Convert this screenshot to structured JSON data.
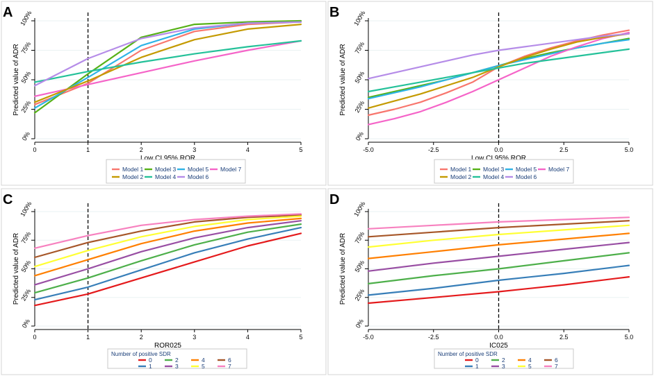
{
  "chart_data": [
    {
      "panel_label": "A",
      "type": "line",
      "title": "",
      "xlabel": "Low CI 95% ROR",
      "ylabel": "Predicted value of ADR",
      "xlim": [
        0,
        5
      ],
      "ylim": [
        0,
        1
      ],
      "xticks": [
        0,
        1,
        2,
        3,
        4,
        5
      ],
      "xtick_labels": [
        "0",
        "1",
        "2",
        "3",
        "4",
        "5"
      ],
      "yticks": [
        0,
        0.25,
        0.5,
        0.75,
        1
      ],
      "ytick_labels": [
        "0%",
        "25%",
        "50%",
        "75%",
        "100%"
      ],
      "vline": 1,
      "grid": true,
      "legend_title": "",
      "legend_cols": 4,
      "series": [
        {
          "name": "Model 1",
          "color": "#f8766d",
          "x": [
            0,
            1,
            2,
            3,
            4,
            5
          ],
          "y": [
            0.29,
            0.47,
            0.75,
            0.91,
            0.97,
            0.99
          ]
        },
        {
          "name": "Model 3",
          "color": "#56b117",
          "x": [
            0,
            1,
            2,
            3,
            4,
            5
          ],
          "y": [
            0.22,
            0.55,
            0.86,
            0.97,
            0.99,
            1.0
          ]
        },
        {
          "name": "Model 5",
          "color": "#2eb3e6",
          "x": [
            0,
            1,
            2,
            3,
            4,
            5
          ],
          "y": [
            0.26,
            0.52,
            0.79,
            0.93,
            0.98,
            0.99
          ]
        },
        {
          "name": "Model 7",
          "color": "#f564c8",
          "x": [
            0,
            1,
            2,
            3,
            4,
            5
          ],
          "y": [
            0.36,
            0.46,
            0.56,
            0.66,
            0.75,
            0.83
          ]
        },
        {
          "name": "Model 2",
          "color": "#c49a00",
          "x": [
            0,
            1,
            2,
            3,
            4,
            5
          ],
          "y": [
            0.31,
            0.49,
            0.69,
            0.84,
            0.93,
            0.97
          ]
        },
        {
          "name": "Model 4",
          "color": "#24c199",
          "x": [
            0,
            1,
            2,
            3,
            4,
            5
          ],
          "y": [
            0.48,
            0.57,
            0.65,
            0.72,
            0.78,
            0.83
          ]
        },
        {
          "name": "Model 6",
          "color": "#b58ce8",
          "x": [
            0,
            1,
            2,
            3,
            4,
            5
          ],
          "y": [
            0.45,
            0.68,
            0.85,
            0.94,
            0.98,
            0.99
          ]
        }
      ]
    },
    {
      "panel_label": "B",
      "type": "line",
      "title": "",
      "xlabel": "Low CI 95% ROR",
      "ylabel": "Predicted value of ADR",
      "xlim": [
        -5,
        5
      ],
      "ylim": [
        0,
        1
      ],
      "xticks": [
        -5,
        -2.5,
        0,
        2.5,
        5
      ],
      "xtick_labels": [
        "-5.0",
        "-2.5",
        "0.0",
        "2.5",
        "5.0"
      ],
      "yticks": [
        0,
        0.25,
        0.5,
        0.75,
        1
      ],
      "ytick_labels": [
        "0%",
        "25%",
        "50%",
        "75%",
        "100%"
      ],
      "vline": 0,
      "grid": true,
      "legend_title": "",
      "legend_cols": 4,
      "series": [
        {
          "name": "Model 1",
          "color": "#f8766d",
          "x": [
            -5,
            -4,
            -3,
            -2,
            -1,
            0,
            1,
            2,
            3,
            4,
            5
          ],
          "y": [
            0.2,
            0.25,
            0.31,
            0.39,
            0.48,
            0.61,
            0.7,
            0.77,
            0.83,
            0.88,
            0.92
          ]
        },
        {
          "name": "Model 3",
          "color": "#56b117",
          "x": [
            -5,
            -4,
            -3,
            -2,
            -1,
            0,
            1,
            2,
            3,
            4,
            5
          ],
          "y": [
            0.35,
            0.4,
            0.45,
            0.5,
            0.56,
            0.62,
            0.68,
            0.73,
            0.77,
            0.81,
            0.85
          ]
        },
        {
          "name": "Model 5",
          "color": "#2eb3e6",
          "x": [
            -5,
            -4,
            -3,
            -2,
            -1,
            0,
            1,
            2,
            3,
            4,
            5
          ],
          "y": [
            0.34,
            0.39,
            0.44,
            0.5,
            0.56,
            0.62,
            0.67,
            0.72,
            0.77,
            0.81,
            0.84
          ]
        },
        {
          "name": "Model 7",
          "color": "#f564c8",
          "x": [
            -5,
            -4,
            -3,
            -2,
            -1,
            0,
            1,
            2,
            3,
            4,
            5
          ],
          "y": [
            0.12,
            0.17,
            0.23,
            0.31,
            0.4,
            0.5,
            0.6,
            0.7,
            0.78,
            0.85,
            0.9
          ]
        },
        {
          "name": "Model 2",
          "color": "#c49a00",
          "x": [
            -5,
            -4,
            -3,
            -2,
            -1,
            0,
            1,
            2,
            3,
            4,
            5
          ],
          "y": [
            0.26,
            0.32,
            0.38,
            0.45,
            0.52,
            0.61,
            0.69,
            0.76,
            0.82,
            0.86,
            0.89
          ]
        },
        {
          "name": "Model 4",
          "color": "#24c199",
          "x": [
            -5,
            -4,
            -3,
            -2,
            -1,
            0,
            1,
            2,
            3,
            4,
            5
          ],
          "y": [
            0.4,
            0.44,
            0.48,
            0.52,
            0.56,
            0.6,
            0.64,
            0.67,
            0.7,
            0.73,
            0.76
          ]
        },
        {
          "name": "Model 6",
          "color": "#b58ce8",
          "x": [
            -5,
            -4,
            -3,
            -2,
            -1,
            0,
            1,
            2,
            3,
            4,
            5
          ],
          "y": [
            0.51,
            0.56,
            0.61,
            0.66,
            0.71,
            0.75,
            0.78,
            0.81,
            0.84,
            0.87,
            0.89
          ]
        }
      ]
    },
    {
      "panel_label": "C",
      "type": "line",
      "title": "",
      "xlabel": "ROR025",
      "ylabel": "Predicted value of ADR",
      "xlim": [
        0,
        5
      ],
      "ylim": [
        0,
        1
      ],
      "xticks": [
        0,
        1,
        2,
        3,
        4,
        5
      ],
      "xtick_labels": [
        "0",
        "1",
        "2",
        "3",
        "4",
        "5"
      ],
      "yticks": [
        0,
        0.25,
        0.5,
        0.75,
        1
      ],
      "ytick_labels": [
        "0%",
        "25%",
        "50%",
        "75%",
        "100%"
      ],
      "vline": 1,
      "grid": true,
      "legend_title": "Number of positive SDR",
      "legend_cols": 4,
      "series": [
        {
          "name": "0",
          "color": "#e41a1c",
          "x": [
            0,
            1,
            2,
            3,
            4,
            5
          ],
          "y": [
            0.18,
            0.28,
            0.42,
            0.56,
            0.7,
            0.81
          ]
        },
        {
          "name": "2",
          "color": "#4daf4a",
          "x": [
            0,
            1,
            2,
            3,
            4,
            5
          ],
          "y": [
            0.29,
            0.42,
            0.57,
            0.71,
            0.82,
            0.89
          ]
        },
        {
          "name": "4",
          "color": "#ff7f00",
          "x": [
            0,
            1,
            2,
            3,
            4,
            5
          ],
          "y": [
            0.44,
            0.58,
            0.72,
            0.83,
            0.9,
            0.94
          ]
        },
        {
          "name": "6",
          "color": "#a65628",
          "x": [
            0,
            1,
            2,
            3,
            4,
            5
          ],
          "y": [
            0.6,
            0.73,
            0.83,
            0.91,
            0.95,
            0.97
          ]
        },
        {
          "name": "1",
          "color": "#377eb8",
          "x": [
            0,
            1,
            2,
            3,
            4,
            5
          ],
          "y": [
            0.23,
            0.34,
            0.49,
            0.64,
            0.76,
            0.86
          ]
        },
        {
          "name": "3",
          "color": "#984ea3",
          "x": [
            0,
            1,
            2,
            3,
            4,
            5
          ],
          "y": [
            0.36,
            0.5,
            0.65,
            0.77,
            0.86,
            0.92
          ]
        },
        {
          "name": "5",
          "color": "#ffff33",
          "x": [
            0,
            1,
            2,
            3,
            4,
            5
          ],
          "y": [
            0.52,
            0.66,
            0.78,
            0.87,
            0.93,
            0.96
          ]
        },
        {
          "name": "7",
          "color": "#f781bf",
          "x": [
            0,
            1,
            2,
            3,
            4,
            5
          ],
          "y": [
            0.68,
            0.79,
            0.88,
            0.93,
            0.96,
            0.98
          ]
        }
      ]
    },
    {
      "panel_label": "D",
      "type": "line",
      "title": "",
      "xlabel": "IC025",
      "ylabel": "Predicted value of ADR",
      "xlim": [
        -5,
        5
      ],
      "ylim": [
        0,
        1
      ],
      "xticks": [
        -5,
        -2.5,
        0,
        2.5,
        5
      ],
      "xtick_labels": [
        "-5.0",
        "-2.5",
        "0.0",
        "2.5",
        "5.0"
      ],
      "yticks": [
        0,
        0.25,
        0.5,
        0.75,
        1
      ],
      "ytick_labels": [
        "0%",
        "25%",
        "50%",
        "75%",
        "100%"
      ],
      "vline": 0,
      "grid": true,
      "legend_title": "Number of positive SDR",
      "legend_cols": 4,
      "series": [
        {
          "name": "0",
          "color": "#e41a1c",
          "x": [
            -5,
            -2.5,
            0,
            2.5,
            5
          ],
          "y": [
            0.2,
            0.25,
            0.3,
            0.36,
            0.43
          ]
        },
        {
          "name": "2",
          "color": "#4daf4a",
          "x": [
            -5,
            -2.5,
            0,
            2.5,
            5
          ],
          "y": [
            0.37,
            0.44,
            0.5,
            0.57,
            0.64
          ]
        },
        {
          "name": "4",
          "color": "#ff7f00",
          "x": [
            -5,
            -2.5,
            0,
            2.5,
            5
          ],
          "y": [
            0.59,
            0.65,
            0.71,
            0.76,
            0.81
          ]
        },
        {
          "name": "6",
          "color": "#a65628",
          "x": [
            -5,
            -2.5,
            0,
            2.5,
            5
          ],
          "y": [
            0.78,
            0.82,
            0.86,
            0.89,
            0.92
          ]
        },
        {
          "name": "1",
          "color": "#377eb8",
          "x": [
            -5,
            -2.5,
            0,
            2.5,
            5
          ],
          "y": [
            0.27,
            0.33,
            0.4,
            0.46,
            0.53
          ]
        },
        {
          "name": "3",
          "color": "#984ea3",
          "x": [
            -5,
            -2.5,
            0,
            2.5,
            5
          ],
          "y": [
            0.48,
            0.55,
            0.61,
            0.67,
            0.73
          ]
        },
        {
          "name": "5",
          "color": "#ffff33",
          "x": [
            -5,
            -2.5,
            0,
            2.5,
            5
          ],
          "y": [
            0.69,
            0.75,
            0.8,
            0.84,
            0.88
          ]
        },
        {
          "name": "7",
          "color": "#f781bf",
          "x": [
            -5,
            -2.5,
            0,
            2.5,
            5
          ],
          "y": [
            0.85,
            0.88,
            0.91,
            0.93,
            0.95
          ]
        }
      ]
    }
  ]
}
